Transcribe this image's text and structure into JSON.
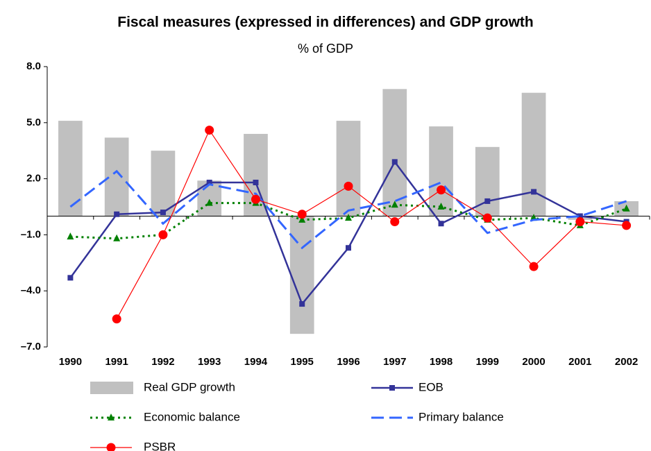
{
  "chart_data": {
    "type": "bar_line",
    "title": "Fiscal measures (expressed in differences) and GDP growth",
    "subtitle": "% of GDP",
    "categories": [
      "1990",
      "1991",
      "1992",
      "1993",
      "1994",
      "1995",
      "1996",
      "1997",
      "1998",
      "1999",
      "2000",
      "2001",
      "2002"
    ],
    "ylim": [
      -7,
      8
    ],
    "yticks": [
      {
        "value": 8,
        "label": "8.0"
      },
      {
        "value": 5,
        "label": "5.0"
      },
      {
        "value": 2,
        "label": "2.0"
      },
      {
        "value": -1,
        "label": "–1.0"
      },
      {
        "value": -4,
        "label": "–4.0"
      },
      {
        "value": -7,
        "label": "–7.0"
      }
    ],
    "series": [
      {
        "name": "Real GDP growth",
        "type": "bar",
        "color": "#c0c0c0",
        "values": [
          5.1,
          4.2,
          3.5,
          1.9,
          4.4,
          -6.3,
          5.1,
          6.8,
          4.8,
          3.7,
          6.6,
          -0.2,
          0.8
        ]
      },
      {
        "name": "EOB",
        "type": "line",
        "color": "#333399",
        "line_style": "solid",
        "marker": "square",
        "values": [
          -3.3,
          0.1,
          0.2,
          1.8,
          1.8,
          -4.7,
          -1.7,
          2.9,
          -0.4,
          0.8,
          1.3,
          0.0,
          -0.3
        ]
      },
      {
        "name": "Economic balance",
        "type": "line",
        "color": "#008000",
        "line_style": "dotted",
        "marker": "triangle",
        "values": [
          -1.1,
          -1.2,
          -1.0,
          0.7,
          0.7,
          -0.2,
          -0.1,
          0.6,
          0.5,
          -0.2,
          -0.1,
          -0.5,
          0.4
        ]
      },
      {
        "name": "Primary balance",
        "type": "line",
        "color": "#3366ff",
        "line_style": "dashed",
        "marker": "none",
        "values": [
          0.5,
          2.4,
          -0.4,
          1.7,
          1.2,
          -1.7,
          0.3,
          0.8,
          1.8,
          -0.9,
          -0.2,
          0.0,
          0.8
        ]
      },
      {
        "name": "PSBR",
        "type": "line",
        "color": "#ff0000",
        "line_style": "solid",
        "marker": "circle",
        "values": [
          null,
          -5.5,
          -1.0,
          4.6,
          0.9,
          0.1,
          1.6,
          -0.3,
          1.4,
          -0.1,
          -2.7,
          -0.3,
          -0.5
        ]
      }
    ]
  }
}
